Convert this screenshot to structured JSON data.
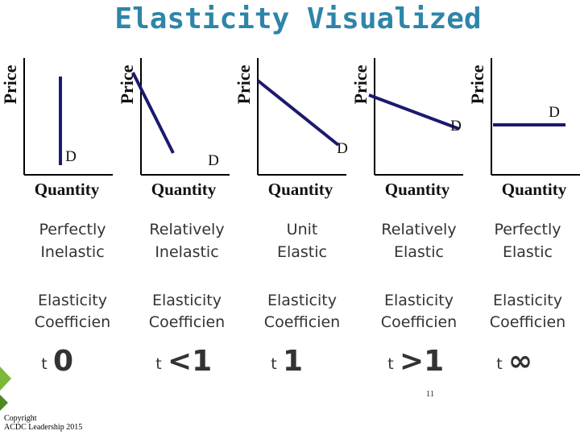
{
  "header": {
    "title": "Elasticity Visualized"
  },
  "panels": [
    {
      "graph": {
        "y_axis": "Price",
        "x_axis": "Quantity",
        "curve_label": "D"
      },
      "label": [
        "Perfectly",
        "Inelastic"
      ],
      "coefficient": [
        "Elasticity",
        "Coefficien",
        "t"
      ],
      "value": "0"
    },
    {
      "graph": {
        "y_axis": "Price",
        "x_axis": "Quantity",
        "curve_label": "D"
      },
      "label": [
        "Relatively",
        "Inelastic"
      ],
      "coefficient": [
        "Elasticity",
        "Coefficien",
        "t"
      ],
      "value": "<1"
    },
    {
      "graph": {
        "y_axis": "Price",
        "x_axis": "Quantity",
        "curve_label": "D"
      },
      "label": [
        "Unit",
        "Elastic"
      ],
      "coefficient": [
        "Elasticity",
        "Coefficien",
        "t"
      ],
      "value": "1"
    },
    {
      "graph": {
        "y_axis": "Price",
        "x_axis": "Quantity",
        "curve_label": "D"
      },
      "label": [
        "Relatively",
        "Elastic"
      ],
      "coefficient": [
        "Elasticity",
        "Coefficien",
        "t"
      ],
      "value": ">1"
    },
    {
      "graph": {
        "y_axis": "Price",
        "x_axis": "Quantity",
        "curve_label": "D"
      },
      "label": [
        "Perfectly",
        "Elastic"
      ],
      "coefficient": [
        "Elasticity",
        "Coefficien",
        "t"
      ],
      "value": "∞"
    }
  ],
  "footer": {
    "page_number": "11",
    "copyright": [
      "Copyright",
      "ACDC Leadership 2015"
    ]
  }
}
